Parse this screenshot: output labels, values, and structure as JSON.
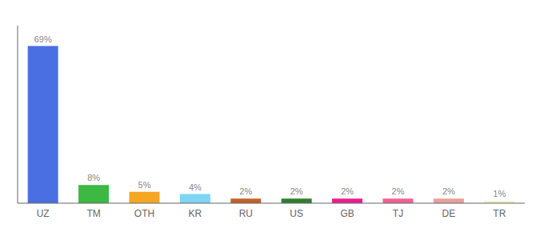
{
  "chart_data": {
    "type": "bar",
    "categories": [
      "UZ",
      "TM",
      "OTH",
      "KR",
      "RU",
      "US",
      "GB",
      "TJ",
      "DE",
      "TR"
    ],
    "values": [
      69,
      8,
      5,
      4,
      2,
      2,
      2,
      2,
      2,
      1
    ],
    "value_labels": [
      "69%",
      "8%",
      "5%",
      "4%",
      "2%",
      "2%",
      "2%",
      "2%",
      "2%",
      "1%"
    ],
    "data_labels": true,
    "colors": [
      "#4A6FE3",
      "#3CB843",
      "#F5A623",
      "#7DD4F5",
      "#C0622A",
      "#2E7D32",
      "#E91E8C",
      "#F06292",
      "#E8A09A",
      "#F5F0C0"
    ],
    "ylim": [
      0,
      78
    ],
    "tick_labels": "x",
    "grid": false
  }
}
